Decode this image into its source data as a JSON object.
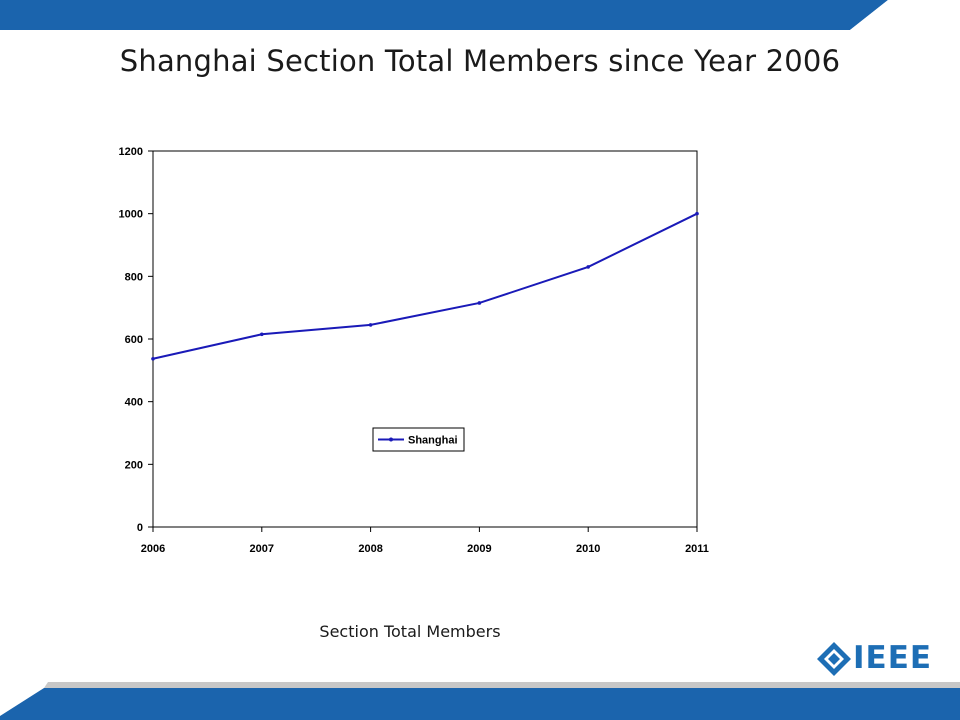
{
  "slide": {
    "title": "Shanghai Section Total Members since Year 2006",
    "caption": "Section Total Members",
    "logo": "IEEE"
  },
  "colors": {
    "banner": "#1b64ad",
    "banner_light": "#c7c7c7",
    "line": "#1a1ab8",
    "logo": "#1d6eb5"
  },
  "icons": {
    "logo_mark": "ieee-diamond-icon"
  },
  "chart_data": {
    "type": "line",
    "x": [
      2006,
      2007,
      2008,
      2009,
      2010,
      2011
    ],
    "series": [
      {
        "name": "Shanghai",
        "values": [
          537,
          615,
          645,
          715,
          830,
          1000
        ]
      }
    ],
    "ylim": [
      0,
      1200
    ],
    "yticks": [
      0,
      200,
      400,
      600,
      800,
      1000,
      1200
    ],
    "xlabel": "",
    "ylabel": "",
    "grid": false,
    "legend": "center"
  }
}
